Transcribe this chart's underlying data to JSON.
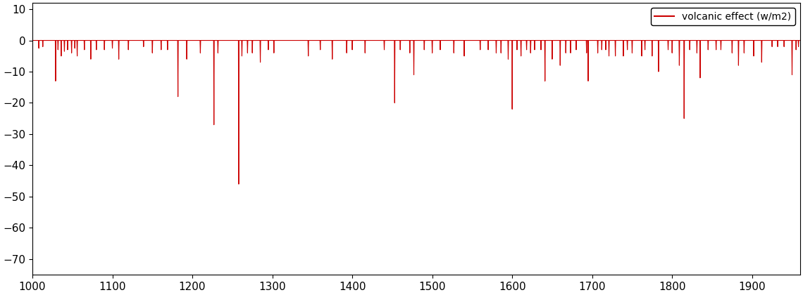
{
  "legend_label": "volcanic effect (w/m2)",
  "line_color": "#cc0000",
  "xlim": [
    1000,
    1960
  ],
  "ylim": [
    -75,
    12
  ],
  "yticks": [
    10,
    0,
    -10,
    -20,
    -30,
    -40,
    -50,
    -60,
    -70
  ],
  "xticks": [
    1000,
    1100,
    1200,
    1300,
    1400,
    1500,
    1600,
    1700,
    1800,
    1900
  ],
  "background_color": "#ffffff",
  "spikes": [
    [
      1008,
      -2.5
    ],
    [
      1013,
      -2.0
    ],
    [
      1029,
      -13.0
    ],
    [
      1032,
      -3.0
    ],
    [
      1036,
      -5.0
    ],
    [
      1040,
      -3.5
    ],
    [
      1044,
      -3.0
    ],
    [
      1049,
      -4.0
    ],
    [
      1053,
      -2.5
    ],
    [
      1056,
      -5.0
    ],
    [
      1065,
      -3.0
    ],
    [
      1073,
      -6.0
    ],
    [
      1080,
      -3.0
    ],
    [
      1090,
      -3.0
    ],
    [
      1100,
      -2.5
    ],
    [
      1108,
      -6.0
    ],
    [
      1120,
      -3.0
    ],
    [
      1139,
      -2.0
    ],
    [
      1150,
      -4.0
    ],
    [
      1161,
      -3.0
    ],
    [
      1169,
      -3.0
    ],
    [
      1182,
      -18.0
    ],
    [
      1193,
      -6.0
    ],
    [
      1210,
      -4.0
    ],
    [
      1227,
      -27.0
    ],
    [
      1232,
      -4.0
    ],
    [
      1258,
      -46.0
    ],
    [
      1262,
      -5.0
    ],
    [
      1269,
      -4.0
    ],
    [
      1275,
      -4.0
    ],
    [
      1285,
      -7.0
    ],
    [
      1295,
      -3.0
    ],
    [
      1302,
      -4.0
    ],
    [
      1345,
      -5.0
    ],
    [
      1360,
      -3.0
    ],
    [
      1375,
      -6.0
    ],
    [
      1393,
      -4.0
    ],
    [
      1400,
      -3.0
    ],
    [
      1416,
      -4.0
    ],
    [
      1440,
      -3.0
    ],
    [
      1453,
      -20.0
    ],
    [
      1460,
      -3.0
    ],
    [
      1472,
      -4.0
    ],
    [
      1477,
      -11.0
    ],
    [
      1490,
      -3.0
    ],
    [
      1500,
      -4.0
    ],
    [
      1510,
      -3.0
    ],
    [
      1527,
      -4.0
    ],
    [
      1540,
      -5.0
    ],
    [
      1560,
      -3.0
    ],
    [
      1570,
      -3.0
    ],
    [
      1580,
      -4.0
    ],
    [
      1586,
      -4.0
    ],
    [
      1595,
      -6.0
    ],
    [
      1600,
      -22.0
    ],
    [
      1606,
      -3.0
    ],
    [
      1611,
      -5.0
    ],
    [
      1618,
      -3.0
    ],
    [
      1623,
      -4.0
    ],
    [
      1628,
      -3.0
    ],
    [
      1636,
      -3.0
    ],
    [
      1641,
      -13.0
    ],
    [
      1650,
      -6.0
    ],
    [
      1660,
      -8.0
    ],
    [
      1667,
      -4.0
    ],
    [
      1673,
      -4.0
    ],
    [
      1680,
      -3.0
    ],
    [
      1693,
      -4.0
    ],
    [
      1695,
      -13.0
    ],
    [
      1707,
      -4.0
    ],
    [
      1712,
      -3.0
    ],
    [
      1717,
      -3.0
    ],
    [
      1721,
      -5.0
    ],
    [
      1729,
      -5.0
    ],
    [
      1739,
      -5.0
    ],
    [
      1744,
      -3.0
    ],
    [
      1750,
      -4.0
    ],
    [
      1762,
      -5.0
    ],
    [
      1766,
      -3.0
    ],
    [
      1775,
      -5.0
    ],
    [
      1783,
      -10.0
    ],
    [
      1795,
      -3.0
    ],
    [
      1800,
      -4.0
    ],
    [
      1809,
      -8.0
    ],
    [
      1815,
      -25.0
    ],
    [
      1822,
      -3.0
    ],
    [
      1831,
      -4.0
    ],
    [
      1835,
      -12.0
    ],
    [
      1845,
      -3.0
    ],
    [
      1855,
      -3.0
    ],
    [
      1861,
      -3.0
    ],
    [
      1875,
      -4.0
    ],
    [
      1883,
      -8.0
    ],
    [
      1890,
      -4.0
    ],
    [
      1902,
      -5.0
    ],
    [
      1912,
      -7.0
    ],
    [
      1925,
      -2.0
    ],
    [
      1932,
      -2.0
    ],
    [
      1940,
      -2.0
    ],
    [
      1950,
      -11.0
    ],
    [
      1955,
      -3.0
    ],
    [
      1958,
      -2.0
    ]
  ]
}
